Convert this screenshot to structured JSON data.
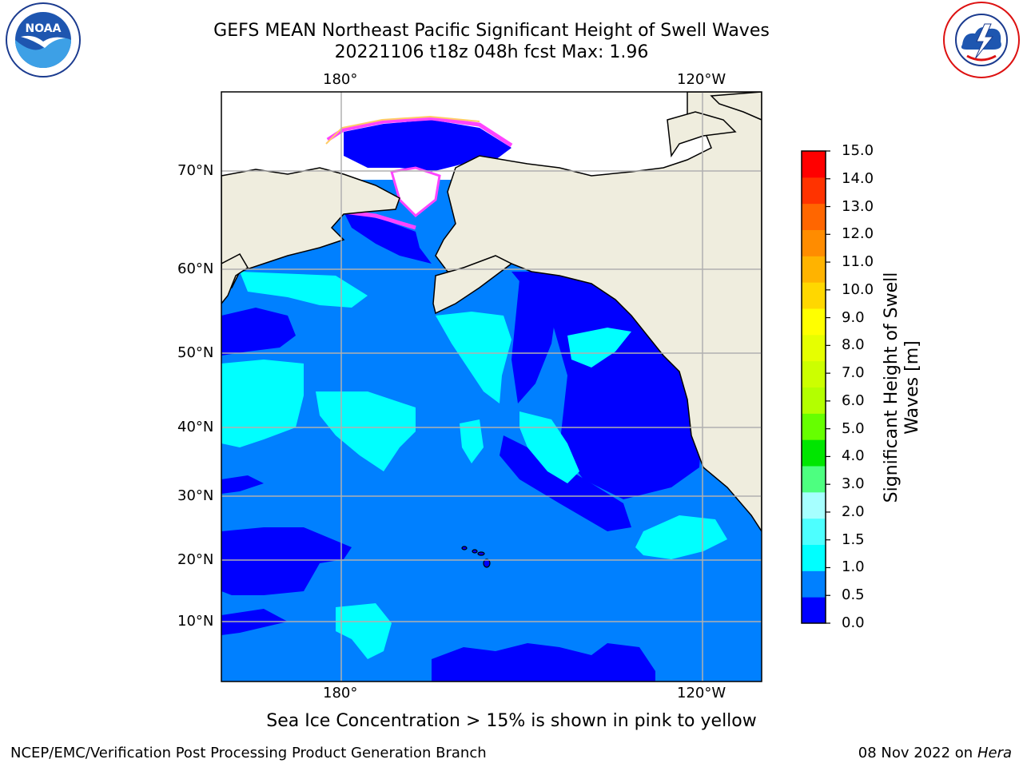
{
  "title": "GEFS MEAN Northeast Pacific Significant Height of Swell Waves",
  "subtitle": "20221106 t18z 048h fcst   Max: 1.96",
  "lon_labels_top": [
    "180°",
    "120°W"
  ],
  "lon_labels_bottom": [
    "180°",
    "120°W"
  ],
  "lat_labels": [
    "70°N",
    "60°N",
    "50°N",
    "40°N",
    "30°N",
    "20°N",
    "10°N"
  ],
  "colorbar": {
    "title_line1": "Significant Height of Swell",
    "title_line2": "Waves [m]",
    "ticks": [
      "15.0",
      "14.0",
      "13.0",
      "12.0",
      "11.0",
      "10.0",
      "9.0",
      "8.0",
      "7.0",
      "6.0",
      "5.0",
      "4.0",
      "3.0",
      "2.0",
      "1.5",
      "1.0",
      "0.5",
      "0.0"
    ],
    "colors_bottom_to_top": [
      "#0000ff",
      "#0080ff",
      "#00ffff",
      "#4dffff",
      "#a6ffff",
      "#4dff80",
      "#00e600",
      "#66ff00",
      "#b3ff00",
      "#ccff00",
      "#e6ff00",
      "#ffff00",
      "#ffd700",
      "#ffb300",
      "#ff8c00",
      "#ff6600",
      "#ff3300",
      "#ff0000"
    ]
  },
  "colors": {
    "land": "#efedde",
    "ocean_low": "#0000ff",
    "ocean_mid": "#0080ff",
    "ocean_high": "#00ffff",
    "ice_pink": "#ff44ff",
    "ice_yellow": "#ffdd00"
  },
  "note": "Sea Ice Concentration > 15% is shown in pink to yellow",
  "footer_left": "NCEP/EMC/Verification Post Processing Product Generation Branch",
  "footer_right_prefix": "08 Nov 2022 on",
  "footer_right_machine": "Hera",
  "logos": {
    "left": "noaa-logo",
    "right": "nws-logo"
  }
}
